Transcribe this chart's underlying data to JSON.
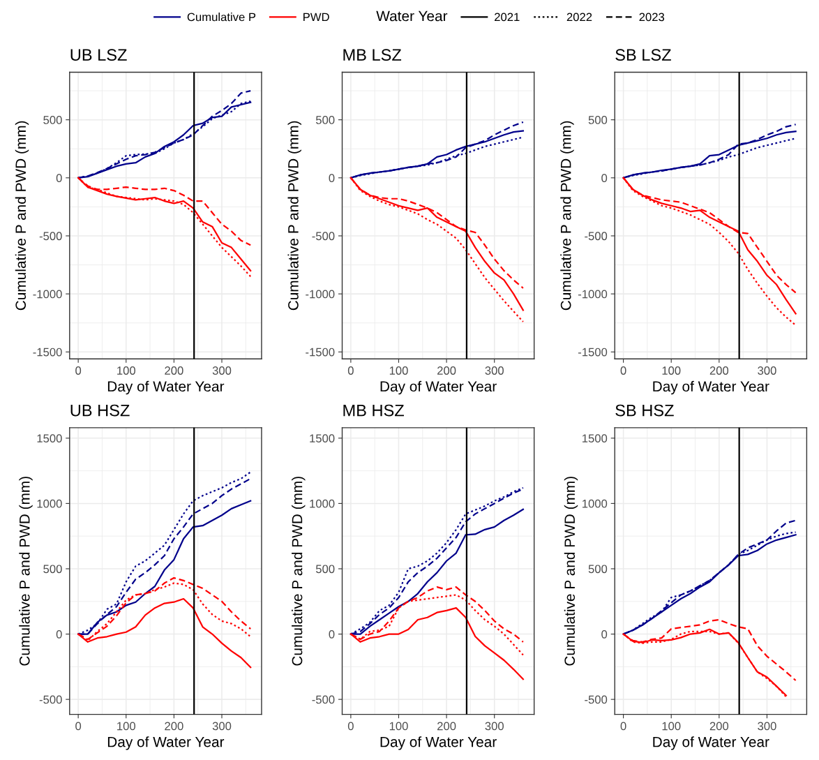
{
  "chart_data": [
    {
      "type": "other",
      "legend": "top",
      "legend_title": "Water Year",
      "series": [
        {
          "name": "Cumulative P",
          "color": "#00008b"
        },
        {
          "name": "PWD",
          "color": "#ff0000"
        },
        {
          "name": "2021",
          "color": "#000000",
          "line_style": "solid"
        },
        {
          "name": "2022",
          "color": "#000000",
          "line_style": "dotted"
        },
        {
          "name": "2023",
          "color": "#000000",
          "line_style": "dashed"
        }
      ]
    },
    {
      "type": "line",
      "title": "UB LSZ",
      "xlabel": "Day of Water Year",
      "ylabel": "Cumulative P and PWD (mm)",
      "grid": true,
      "xlim": [
        -18,
        383
      ],
      "xticks": [
        0,
        {
          "value": 50,
          "label": null
        },
        100,
        {
          "value": 150,
          "label": null
        },
        200,
        {
          "value": 250,
          "label": null
        },
        300,
        {
          "value": 350,
          "label": null
        }
      ],
      "ylim": [
        -1560,
        910
      ],
      "yticks": [
        -1500,
        {
          "value": -1250,
          "label": null
        },
        -1000,
        {
          "value": -750,
          "label": null
        },
        -500,
        {
          "value": -250,
          "label": null
        },
        0,
        {
          "value": 250,
          "label": null
        },
        500,
        {
          "value": 750,
          "label": null
        }
      ],
      "ref_lines": [
        {
          "axis": "x",
          "value": 242,
          "color": "#000000"
        }
      ],
      "x": [
        0,
        20,
        40,
        60,
        80,
        100,
        120,
        140,
        160,
        180,
        200,
        220,
        240,
        260,
        280,
        300,
        320,
        340,
        360
      ],
      "series": [
        {
          "color": "#00008b",
          "line_style": "solid",
          "values": [
            0,
            10,
            40,
            70,
            100,
            120,
            130,
            180,
            210,
            270,
            310,
            370,
            450,
            470,
            520,
            530,
            610,
            630,
            650
          ]
        },
        {
          "color": "#00008b",
          "line_style": "dotted",
          "values": [
            0,
            15,
            40,
            80,
            130,
            190,
            200,
            205,
            210,
            250,
            300,
            330,
            380,
            440,
            510,
            540,
            570,
            640,
            660
          ]
        },
        {
          "color": "#00008b",
          "line_style": "dashed",
          "values": [
            0,
            15,
            45,
            80,
            120,
            160,
            190,
            200,
            220,
            260,
            300,
            330,
            370,
            450,
            530,
            580,
            640,
            730,
            750
          ]
        },
        {
          "color": "#ff0000",
          "line_style": "solid",
          "values": [
            0,
            -80,
            -110,
            -140,
            -160,
            -175,
            -190,
            -180,
            -170,
            -200,
            -220,
            -200,
            -260,
            -380,
            -420,
            -560,
            -600,
            -700,
            -800
          ]
        },
        {
          "color": "#ff0000",
          "line_style": "dotted",
          "values": [
            0,
            -80,
            -100,
            -130,
            -160,
            -170,
            -180,
            -190,
            -180,
            -190,
            -200,
            -230,
            -300,
            -400,
            -500,
            -600,
            -680,
            -760,
            -850
          ]
        },
        {
          "color": "#ff0000",
          "line_style": "dashed",
          "values": [
            0,
            -70,
            -100,
            -100,
            -90,
            -80,
            -90,
            -100,
            -100,
            -90,
            -110,
            -150,
            -200,
            -200,
            -300,
            -400,
            -460,
            -540,
            -580
          ]
        }
      ]
    },
    {
      "type": "line",
      "title": "MB LSZ",
      "xlabel": "Day of Water Year",
      "ylabel": "Cumulative P and PWD (mm)",
      "grid": true,
      "xlim": [
        -18,
        383
      ],
      "xticks": [
        0,
        {
          "value": 50,
          "label": null
        },
        100,
        {
          "value": 150,
          "label": null
        },
        200,
        {
          "value": 250,
          "label": null
        },
        300,
        {
          "value": 350,
          "label": null
        }
      ],
      "ylim": [
        -1560,
        910
      ],
      "yticks": [
        -1500,
        {
          "value": -1250,
          "label": null
        },
        -1000,
        {
          "value": -750,
          "label": null
        },
        -500,
        {
          "value": -250,
          "label": null
        },
        0,
        {
          "value": 250,
          "label": null
        },
        500,
        {
          "value": 750,
          "label": null
        }
      ],
      "ref_lines": [
        {
          "axis": "x",
          "value": 242,
          "color": "#000000"
        }
      ],
      "x": [
        0,
        20,
        40,
        60,
        80,
        100,
        120,
        140,
        160,
        180,
        200,
        220,
        240,
        260,
        280,
        300,
        320,
        340,
        360
      ],
      "series": [
        {
          "color": "#00008b",
          "line_style": "solid",
          "values": [
            0,
            25,
            40,
            50,
            60,
            75,
            90,
            100,
            120,
            180,
            200,
            240,
            270,
            290,
            310,
            340,
            370,
            395,
            405
          ]
        },
        {
          "color": "#00008b",
          "line_style": "dotted",
          "values": [
            0,
            20,
            35,
            50,
            60,
            75,
            90,
            100,
            110,
            130,
            160,
            190,
            210,
            240,
            270,
            290,
            310,
            330,
            350
          ]
        },
        {
          "color": "#00008b",
          "line_style": "dashed",
          "values": [
            0,
            25,
            40,
            50,
            60,
            75,
            90,
            100,
            120,
            130,
            150,
            180,
            260,
            290,
            320,
            370,
            410,
            450,
            480
          ]
        },
        {
          "color": "#ff0000",
          "line_style": "solid",
          "values": [
            0,
            -100,
            -150,
            -180,
            -210,
            -240,
            -260,
            -280,
            -260,
            -340,
            -380,
            -420,
            -460,
            -600,
            -720,
            -820,
            -880,
            -1000,
            -1140
          ]
        },
        {
          "color": "#ff0000",
          "line_style": "dotted",
          "values": [
            0,
            -110,
            -160,
            -200,
            -230,
            -250,
            -280,
            -310,
            -360,
            -400,
            -460,
            -520,
            -620,
            -740,
            -860,
            -960,
            -1060,
            -1150,
            -1240
          ]
        },
        {
          "color": "#ff0000",
          "line_style": "dashed",
          "values": [
            0,
            -100,
            -150,
            -170,
            -180,
            -180,
            -200,
            -230,
            -260,
            -300,
            -360,
            -420,
            -450,
            -470,
            -580,
            -700,
            -800,
            -880,
            -950
          ]
        }
      ]
    },
    {
      "type": "line",
      "title": "SB LSZ",
      "xlabel": "Day of Water Year",
      "ylabel": "Cumulative P and PWD (mm)",
      "grid": true,
      "xlim": [
        -18,
        383
      ],
      "xticks": [
        0,
        {
          "value": 50,
          "label": null
        },
        100,
        {
          "value": 150,
          "label": null
        },
        200,
        {
          "value": 250,
          "label": null
        },
        300,
        {
          "value": 350,
          "label": null
        }
      ],
      "ylim": [
        -1560,
        910
      ],
      "yticks": [
        -1500,
        {
          "value": -1250,
          "label": null
        },
        -1000,
        {
          "value": -750,
          "label": null
        },
        -500,
        {
          "value": -250,
          "label": null
        },
        0,
        {
          "value": 250,
          "label": null
        },
        500,
        {
          "value": 750,
          "label": null
        }
      ],
      "ref_lines": [
        {
          "axis": "x",
          "value": 242,
          "color": "#000000"
        }
      ],
      "x": [
        0,
        20,
        40,
        60,
        80,
        100,
        120,
        140,
        160,
        180,
        200,
        220,
        240,
        260,
        280,
        300,
        320,
        340,
        360
      ],
      "series": [
        {
          "color": "#00008b",
          "line_style": "solid",
          "values": [
            0,
            25,
            40,
            50,
            65,
            75,
            90,
            100,
            120,
            190,
            200,
            240,
            280,
            300,
            320,
            340,
            370,
            390,
            400
          ]
        },
        {
          "color": "#00008b",
          "line_style": "dotted",
          "values": [
            0,
            20,
            35,
            50,
            60,
            75,
            90,
            100,
            110,
            130,
            150,
            180,
            200,
            230,
            260,
            280,
            300,
            320,
            340
          ]
        },
        {
          "color": "#00008b",
          "line_style": "dashed",
          "values": [
            0,
            25,
            40,
            50,
            60,
            75,
            90,
            100,
            110,
            130,
            160,
            200,
            290,
            300,
            330,
            370,
            400,
            440,
            460
          ]
        },
        {
          "color": "#ff0000",
          "line_style": "solid",
          "values": [
            0,
            -100,
            -150,
            -190,
            -220,
            -240,
            -260,
            -290,
            -280,
            -340,
            -380,
            -420,
            -460,
            -620,
            -720,
            -840,
            -920,
            -1050,
            -1170
          ]
        },
        {
          "color": "#ff0000",
          "line_style": "dotted",
          "values": [
            0,
            -110,
            -160,
            -200,
            -240,
            -260,
            -290,
            -320,
            -360,
            -400,
            -470,
            -550,
            -650,
            -790,
            -910,
            -1020,
            -1120,
            -1200,
            -1270
          ]
        },
        {
          "color": "#ff0000",
          "line_style": "dashed",
          "values": [
            0,
            -100,
            -150,
            -170,
            -190,
            -200,
            -210,
            -240,
            -270,
            -300,
            -360,
            -420,
            -470,
            -480,
            -600,
            -720,
            -840,
            -920,
            -990
          ]
        }
      ]
    },
    {
      "type": "line",
      "title": "UB HSZ",
      "xlabel": "Day of Water Year",
      "ylabel": "Cumulative P and PWD (mm)",
      "grid": true,
      "xlim": [
        -18,
        383
      ],
      "xticks": [
        0,
        {
          "value": 50,
          "label": null
        },
        100,
        {
          "value": 150,
          "label": null
        },
        200,
        {
          "value": 250,
          "label": null
        },
        300,
        {
          "value": 350,
          "label": null
        }
      ],
      "ylim": [
        -615,
        1580
      ],
      "yticks": [
        -500,
        {
          "value": -250,
          "label": null
        },
        0,
        {
          "value": 250,
          "label": null
        },
        500,
        {
          "value": 750,
          "label": null
        },
        1000,
        {
          "value": 1250,
          "label": null
        },
        1500
      ],
      "ref_lines": [
        {
          "axis": "x",
          "value": 242,
          "color": "#000000"
        }
      ],
      "x": [
        0,
        20,
        40,
        60,
        80,
        100,
        120,
        140,
        160,
        180,
        200,
        220,
        240,
        260,
        280,
        300,
        320,
        340,
        360
      ],
      "series": [
        {
          "color": "#00008b",
          "line_style": "solid",
          "values": [
            0,
            0,
            90,
            145,
            170,
            220,
            245,
            310,
            365,
            490,
            570,
            730,
            820,
            830,
            870,
            910,
            960,
            990,
            1020
          ]
        },
        {
          "color": "#00008b",
          "line_style": "dotted",
          "values": [
            0,
            30,
            80,
            190,
            230,
            400,
            520,
            560,
            620,
            680,
            800,
            920,
            1020,
            1060,
            1090,
            1120,
            1160,
            1190,
            1240
          ]
        },
        {
          "color": "#00008b",
          "line_style": "dashed",
          "values": [
            0,
            0,
            80,
            150,
            210,
            320,
            420,
            470,
            530,
            600,
            730,
            820,
            920,
            960,
            1000,
            1060,
            1110,
            1150,
            1190
          ]
        },
        {
          "color": "#ff0000",
          "line_style": "solid",
          "values": [
            0,
            -60,
            -30,
            -20,
            0,
            15,
            55,
            145,
            200,
            235,
            245,
            270,
            200,
            55,
            0,
            -70,
            -130,
            -180,
            -255
          ]
        },
        {
          "color": "#ff0000",
          "line_style": "dotted",
          "values": [
            0,
            -50,
            20,
            80,
            170,
            260,
            300,
            310,
            340,
            360,
            390,
            380,
            340,
            230,
            150,
            100,
            80,
            40,
            -20
          ]
        },
        {
          "color": "#ff0000",
          "line_style": "dashed",
          "values": [
            0,
            -40,
            10,
            60,
            140,
            240,
            300,
            310,
            330,
            390,
            430,
            410,
            380,
            350,
            300,
            250,
            170,
            100,
            40
          ]
        }
      ]
    },
    {
      "type": "line",
      "title": "MB HSZ",
      "xlabel": "Day of Water Year",
      "ylabel": "Cumulative P and PWD (mm)",
      "grid": true,
      "xlim": [
        -18,
        383
      ],
      "xticks": [
        0,
        {
          "value": 50,
          "label": null
        },
        100,
        {
          "value": 150,
          "label": null
        },
        200,
        {
          "value": 250,
          "label": null
        },
        300,
        {
          "value": 350,
          "label": null
        }
      ],
      "ylim": [
        -615,
        1580
      ],
      "yticks": [
        -500,
        {
          "value": -250,
          "label": null
        },
        0,
        {
          "value": 250,
          "label": null
        },
        500,
        {
          "value": 750,
          "label": null
        },
        1000,
        {
          "value": 1250,
          "label": null
        },
        1500
      ],
      "ref_lines": [
        {
          "axis": "x",
          "value": 242,
          "color": "#000000"
        }
      ],
      "x": [
        0,
        20,
        40,
        60,
        80,
        100,
        120,
        140,
        160,
        180,
        200,
        220,
        240,
        260,
        280,
        300,
        320,
        340,
        360
      ],
      "series": [
        {
          "color": "#00008b",
          "line_style": "solid",
          "values": [
            0,
            0,
            60,
            110,
            160,
            210,
            250,
            310,
            400,
            470,
            560,
            620,
            760,
            765,
            800,
            820,
            870,
            910,
            955
          ]
        },
        {
          "color": "#00008b",
          "line_style": "dotted",
          "values": [
            0,
            40,
            90,
            180,
            220,
            320,
            500,
            520,
            560,
            620,
            700,
            800,
            920,
            950,
            980,
            1020,
            1050,
            1090,
            1120
          ]
        },
        {
          "color": "#00008b",
          "line_style": "dashed",
          "values": [
            0,
            20,
            80,
            150,
            200,
            280,
            400,
            470,
            520,
            580,
            660,
            740,
            860,
            920,
            960,
            1000,
            1040,
            1080,
            1110
          ]
        },
        {
          "color": "#ff0000",
          "line_style": "solid",
          "values": [
            0,
            -60,
            -30,
            -20,
            0,
            0,
            35,
            110,
            127,
            165,
            180,
            200,
            127,
            -18,
            -90,
            -145,
            -200,
            -270,
            -345
          ]
        },
        {
          "color": "#ff0000",
          "line_style": "dotted",
          "values": [
            0,
            -40,
            20,
            30,
            60,
            200,
            250,
            260,
            270,
            280,
            290,
            300,
            260,
            180,
            110,
            60,
            0,
            -80,
            -160
          ]
        },
        {
          "color": "#ff0000",
          "line_style": "dashed",
          "values": [
            0,
            -40,
            0,
            20,
            100,
            200,
            250,
            280,
            330,
            360,
            340,
            360,
            300,
            250,
            180,
            100,
            40,
            0,
            -60
          ]
        }
      ]
    },
    {
      "type": "line",
      "title": "SB HSZ",
      "xlabel": "Day of Water Year",
      "ylabel": "Cumulative P and PWD (mm)",
      "grid": true,
      "xlim": [
        -18,
        383
      ],
      "xticks": [
        0,
        {
          "value": 50,
          "label": null
        },
        100,
        {
          "value": 150,
          "label": null
        },
        200,
        {
          "value": 250,
          "label": null
        },
        300,
        {
          "value": 350,
          "label": null
        }
      ],
      "ylim": [
        -615,
        1580
      ],
      "yticks": [
        -500,
        {
          "value": -250,
          "label": null
        },
        0,
        {
          "value": 250,
          "label": null
        },
        500,
        {
          "value": 750,
          "label": null
        },
        1000,
        {
          "value": 1250,
          "label": null
        },
        1500
      ],
      "ref_lines": [
        {
          "axis": "x",
          "value": 242,
          "color": "#000000"
        }
      ],
      "x": [
        0,
        20,
        40,
        60,
        80,
        100,
        120,
        140,
        160,
        180,
        200,
        220,
        240,
        260,
        280,
        300,
        320,
        340,
        360
      ],
      "series": [
        {
          "color": "#00008b",
          "line_style": "solid",
          "values": [
            0,
            30,
            70,
            120,
            170,
            220,
            270,
            310,
            360,
            400,
            470,
            530,
            600,
            610,
            640,
            690,
            720,
            740,
            760
          ]
        },
        {
          "color": "#00008b",
          "line_style": "dotted",
          "values": [
            0,
            30,
            80,
            130,
            170,
            280,
            300,
            330,
            370,
            410,
            470,
            530,
            610,
            640,
            680,
            720,
            750,
            770,
            780
          ]
        },
        {
          "color": "#00008b",
          "line_style": "dashed",
          "values": [
            0,
            30,
            70,
            120,
            180,
            240,
            300,
            330,
            370,
            410,
            470,
            530,
            610,
            660,
            690,
            720,
            790,
            850,
            870
          ]
        },
        {
          "color": "#ff0000",
          "line_style": "solid",
          "values": [
            0,
            -55,
            -65,
            -45,
            -50,
            -45,
            -27,
            0,
            9,
            36,
            0,
            9,
            -65,
            -180,
            -290,
            -330,
            -400,
            -470,
            null
          ]
        },
        {
          "color": "#ff0000",
          "line_style": "dotted",
          "values": [
            0,
            -60,
            -70,
            -60,
            -60,
            -40,
            0,
            20,
            20,
            20,
            0,
            10,
            -70,
            -180,
            -290,
            -340,
            -400,
            -480,
            null
          ]
        },
        {
          "color": "#ff0000",
          "line_style": "dashed",
          "values": [
            0,
            -50,
            -60,
            -40,
            -30,
            40,
            50,
            60,
            70,
            100,
            110,
            80,
            55,
            40,
            -90,
            -170,
            -230,
            -290,
            -355
          ]
        }
      ]
    }
  ]
}
